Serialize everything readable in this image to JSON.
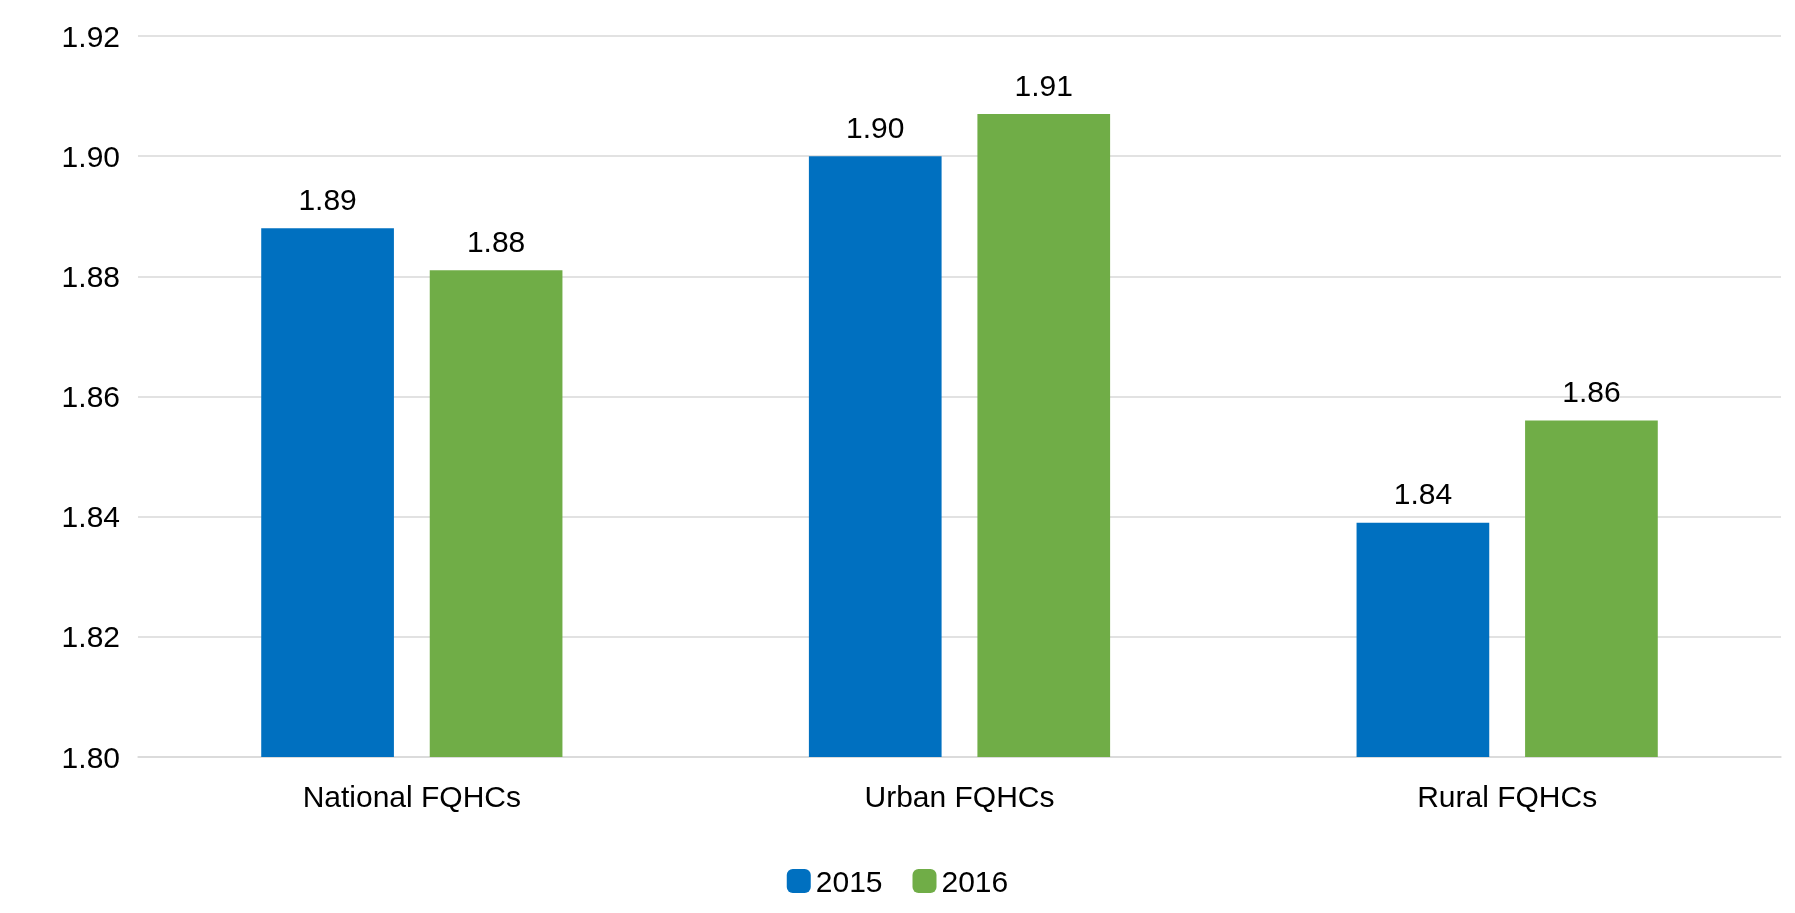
{
  "chart_data": {
    "type": "bar",
    "categories": [
      "National FQHCs",
      "Urban FQHCs",
      "Rural FQHCs"
    ],
    "series": [
      {
        "name": "2015",
        "color": "#0070c0",
        "values": [
          1.888,
          1.9,
          1.839
        ],
        "value_labels": [
          "1.89",
          "1.90",
          "1.84"
        ]
      },
      {
        "name": "2016",
        "color": "#70ad47",
        "values": [
          1.881,
          1.907,
          1.856
        ],
        "value_labels": [
          "1.88",
          "1.91",
          "1.86"
        ]
      }
    ],
    "ylim": [
      1.8,
      1.92
    ],
    "yticks": [
      {
        "value": 1.8,
        "label": "1.80"
      },
      {
        "value": 1.82,
        "label": "1.82"
      },
      {
        "value": 1.84,
        "label": "1.84"
      },
      {
        "value": 1.86,
        "label": "1.86"
      },
      {
        "value": 1.88,
        "label": "1.88"
      },
      {
        "value": 1.9,
        "label": "1.90"
      },
      {
        "value": 1.92,
        "label": "1.92"
      }
    ],
    "grid": "y",
    "legend": "bottom"
  }
}
